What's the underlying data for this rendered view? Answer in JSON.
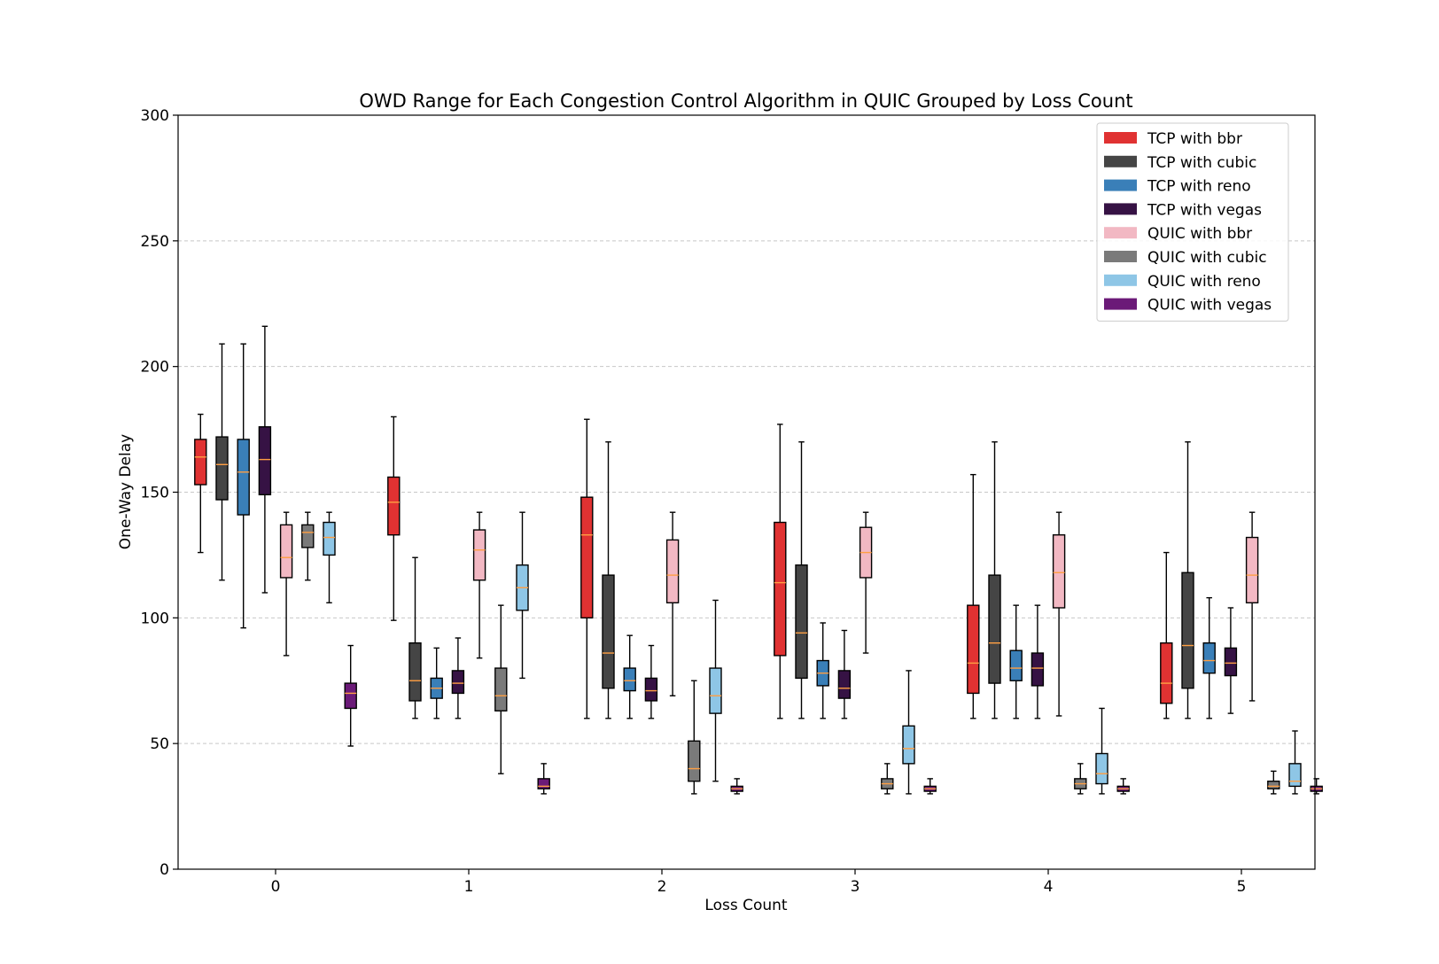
{
  "chart_data": {
    "type": "box",
    "title": "OWD Range for Each Congestion Control Algorithm in QUIC Grouped by Loss Count",
    "xlabel": "Loss Count",
    "ylabel": "One-Way Delay",
    "ylim": [
      0,
      300
    ],
    "yticks": [
      "0",
      "50",
      "100",
      "150",
      "200",
      "250",
      "300"
    ],
    "categories": [
      "0",
      "1",
      "2",
      "3",
      "4",
      "5"
    ],
    "grid": "y-dashed",
    "legend_position": "top-right",
    "median_color": "#ff9f43",
    "series": [
      {
        "name": "TCP with bbr",
        "color": "#e03232",
        "boxes": [
          {
            "whislo": 126,
            "q1": 153,
            "med": 164,
            "q3": 171,
            "whishi": 181
          },
          {
            "whislo": 99,
            "q1": 133,
            "med": 146,
            "q3": 156,
            "whishi": 180
          },
          {
            "whislo": 60,
            "q1": 100,
            "med": 133,
            "q3": 148,
            "whishi": 179
          },
          {
            "whislo": 60,
            "q1": 85,
            "med": 114,
            "q3": 138,
            "whishi": 177
          },
          {
            "whislo": 60,
            "q1": 70,
            "med": 82,
            "q3": 105,
            "whishi": 157
          },
          {
            "whislo": 60,
            "q1": 66,
            "med": 74,
            "q3": 90,
            "whishi": 126
          }
        ]
      },
      {
        "name": "TCP with cubic",
        "color": "#454545",
        "boxes": [
          {
            "whislo": 115,
            "q1": 147,
            "med": 161,
            "q3": 172,
            "whishi": 209
          },
          {
            "whislo": 60,
            "q1": 67,
            "med": 75,
            "q3": 90,
            "whishi": 124
          },
          {
            "whislo": 60,
            "q1": 72,
            "med": 86,
            "q3": 117,
            "whishi": 170
          },
          {
            "whislo": 60,
            "q1": 76,
            "med": 94,
            "q3": 121,
            "whishi": 170
          },
          {
            "whislo": 60,
            "q1": 74,
            "med": 90,
            "q3": 117,
            "whishi": 170
          },
          {
            "whislo": 60,
            "q1": 72,
            "med": 89,
            "q3": 118,
            "whishi": 170
          }
        ]
      },
      {
        "name": "TCP with reno",
        "color": "#3a7fb8",
        "boxes": [
          {
            "whislo": 96,
            "q1": 141,
            "med": 158,
            "q3": 171,
            "whishi": 209
          },
          {
            "whislo": 60,
            "q1": 68,
            "med": 72,
            "q3": 76,
            "whishi": 88
          },
          {
            "whislo": 60,
            "q1": 71,
            "med": 75,
            "q3": 80,
            "whishi": 93
          },
          {
            "whislo": 60,
            "q1": 73,
            "med": 78,
            "q3": 83,
            "whishi": 98
          },
          {
            "whislo": 60,
            "q1": 75,
            "med": 80,
            "q3": 87,
            "whishi": 105
          },
          {
            "whislo": 60,
            "q1": 78,
            "med": 83,
            "q3": 90,
            "whishi": 108
          }
        ]
      },
      {
        "name": "TCP with vegas",
        "color": "#361244",
        "boxes": [
          {
            "whislo": 110,
            "q1": 149,
            "med": 163,
            "q3": 176,
            "whishi": 216
          },
          {
            "whislo": 60,
            "q1": 70,
            "med": 74,
            "q3": 79,
            "whishi": 92
          },
          {
            "whislo": 60,
            "q1": 67,
            "med": 71,
            "q3": 76,
            "whishi": 89
          },
          {
            "whislo": 60,
            "q1": 68,
            "med": 72,
            "q3": 79,
            "whishi": 95
          },
          {
            "whislo": 60,
            "q1": 73,
            "med": 80,
            "q3": 86,
            "whishi": 105
          },
          {
            "whislo": 62,
            "q1": 77,
            "med": 82,
            "q3": 88,
            "whishi": 104
          }
        ]
      },
      {
        "name": "QUIC with bbr",
        "color": "#f2b8c3",
        "boxes": [
          {
            "whislo": 85,
            "q1": 116,
            "med": 124,
            "q3": 137,
            "whishi": 142
          },
          {
            "whislo": 84,
            "q1": 115,
            "med": 127,
            "q3": 135,
            "whishi": 142
          },
          {
            "whislo": 69,
            "q1": 106,
            "med": 117,
            "q3": 131,
            "whishi": 142
          },
          {
            "whislo": 86,
            "q1": 116,
            "med": 126,
            "q3": 136,
            "whishi": 142
          },
          {
            "whislo": 61,
            "q1": 104,
            "med": 118,
            "q3": 133,
            "whishi": 142
          },
          {
            "whislo": 67,
            "q1": 106,
            "med": 117,
            "q3": 132,
            "whishi": 142
          }
        ]
      },
      {
        "name": "QUIC with cubic",
        "color": "#7a7a7a",
        "boxes": [
          {
            "whislo": 115,
            "q1": 128,
            "med": 134,
            "q3": 137,
            "whishi": 142
          },
          {
            "whislo": 38,
            "q1": 63,
            "med": 69,
            "q3": 80,
            "whishi": 105
          },
          {
            "whislo": 30,
            "q1": 35,
            "med": 40,
            "q3": 51,
            "whishi": 75
          },
          {
            "whislo": 30,
            "q1": 32,
            "med": 34,
            "q3": 36,
            "whishi": 42
          },
          {
            "whislo": 30,
            "q1": 32,
            "med": 34,
            "q3": 36,
            "whishi": 42
          },
          {
            "whislo": 30,
            "q1": 32,
            "med": 33,
            "q3": 35,
            "whishi": 39
          }
        ]
      },
      {
        "name": "QUIC with reno",
        "color": "#8ec6e6",
        "boxes": [
          {
            "whislo": 106,
            "q1": 125,
            "med": 132,
            "q3": 138,
            "whishi": 142
          },
          {
            "whislo": 76,
            "q1": 103,
            "med": 112,
            "q3": 121,
            "whishi": 142
          },
          {
            "whislo": 35,
            "q1": 62,
            "med": 69,
            "q3": 80,
            "whishi": 107
          },
          {
            "whislo": 30,
            "q1": 42,
            "med": 48,
            "q3": 57,
            "whishi": 79
          },
          {
            "whislo": 30,
            "q1": 34,
            "med": 38,
            "q3": 46,
            "whishi": 64
          },
          {
            "whislo": 30,
            "q1": 33,
            "med": 35,
            "q3": 42,
            "whishi": 55
          }
        ]
      },
      {
        "name": "QUIC with vegas",
        "color": "#6b1a78",
        "boxes": [
          {
            "whislo": 49,
            "q1": 64,
            "med": 70,
            "q3": 74,
            "whishi": 89
          },
          {
            "whislo": 30,
            "q1": 32,
            "med": 33,
            "q3": 36,
            "whishi": 42
          },
          {
            "whislo": 30,
            "q1": 31,
            "med": 32,
            "q3": 33,
            "whishi": 36
          },
          {
            "whislo": 30,
            "q1": 31,
            "med": 32,
            "q3": 33,
            "whishi": 36
          },
          {
            "whislo": 30,
            "q1": 31,
            "med": 32,
            "q3": 33,
            "whishi": 36
          },
          {
            "whislo": 30,
            "q1": 31,
            "med": 32,
            "q3": 33,
            "whishi": 36
          }
        ]
      }
    ]
  }
}
